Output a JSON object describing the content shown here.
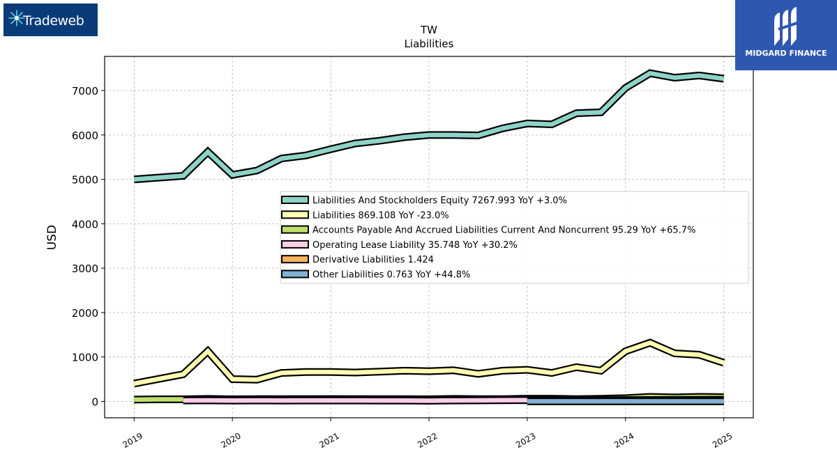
{
  "brand_left": {
    "logo_text": "Tradeweb",
    "icon": "tradeweb-starburst-icon",
    "bg_color": "#0a3a78"
  },
  "brand_right": {
    "logo_text": "MIDGARD FINANCE",
    "icon": "midgard-m-monogram-icon",
    "bg_color": "#2e58b0"
  },
  "chart_data": {
    "type": "line",
    "title": "TW",
    "subtitle": "Liabilities",
    "xlabel": "",
    "ylabel": "USD",
    "xlim": [
      2018.7,
      2025.3
    ],
    "ylim": [
      -370,
      7770
    ],
    "x_ticks": [
      2019,
      2020,
      2021,
      2022,
      2023,
      2024,
      2025
    ],
    "y_ticks": [
      0,
      1000,
      2000,
      3000,
      4000,
      5000,
      6000,
      7000
    ],
    "grid": true,
    "legend_position": "center-right",
    "series": [
      {
        "name": "Liabilities And Stockholders Equity  7267.993 YoY +3.0%",
        "color": "#8dd3c7",
        "x": [
          2019.0,
          2019.5,
          2019.75,
          2020.0,
          2020.25,
          2020.5,
          2020.75,
          2021.0,
          2021.25,
          2021.5,
          2021.75,
          2022.0,
          2022.25,
          2022.5,
          2022.75,
          2023.0,
          2023.25,
          2023.5,
          2023.75,
          2024.0,
          2024.25,
          2024.5,
          2024.75,
          2025.0
        ],
        "values": [
          5000,
          5080,
          5620,
          5100,
          5200,
          5470,
          5540,
          5680,
          5810,
          5870,
          5950,
          6000,
          6000,
          5990,
          6150,
          6260,
          6240,
          6490,
          6510,
          7060,
          7390,
          7290,
          7340,
          7268
        ]
      },
      {
        "name": "Liabilities  869.108 YoY -23.0%",
        "color": "#ffffb3",
        "x": [
          2019.0,
          2019.5,
          2019.75,
          2020.0,
          2020.25,
          2020.5,
          2020.75,
          2021.0,
          2021.25,
          2021.5,
          2021.75,
          2022.0,
          2022.25,
          2022.5,
          2022.75,
          2023.0,
          2023.25,
          2023.5,
          2023.75,
          2024.0,
          2024.25,
          2024.5,
          2024.75,
          2025.0
        ],
        "values": [
          400,
          610,
          1130,
          500,
          490,
          640,
          660,
          660,
          650,
          670,
          690,
          680,
          700,
          620,
          690,
          710,
          640,
          770,
          690,
          1130,
          1320,
          1080,
          1050,
          869
        ]
      },
      {
        "name": "Accounts Payable And Accrued Liabilities Current And Noncurrent  95.29 YoY +65.7%",
        "color": "#bfe06a",
        "x": [
          2019.0,
          2019.25,
          2019.5,
          2019.75,
          2020.0,
          2020.25,
          2020.5,
          2020.75,
          2021.0,
          2021.25,
          2021.5,
          2021.75,
          2022.0,
          2022.25,
          2022.5,
          2022.75,
          2023.0,
          2023.25,
          2023.5,
          2023.75,
          2024.0,
          2024.25,
          2024.5,
          2024.75,
          2025.0
        ],
        "values": [
          40,
          45,
          45,
          55,
          45,
          50,
          48,
          50,
          52,
          50,
          50,
          48,
          45,
          55,
          50,
          50,
          60,
          60,
          50,
          58,
          70,
          100,
          90,
          100,
          95
        ]
      },
      {
        "name": "Operating Lease Liability  35.748 YoY +30.2%",
        "color": "#fccde5",
        "x": [
          2019.5,
          2019.75,
          2020.0,
          2020.25,
          2020.5,
          2020.75,
          2021.0,
          2021.25,
          2021.5,
          2021.75,
          2022.0,
          2022.25,
          2022.5,
          2022.75,
          2023.0,
          2023.25,
          2023.5,
          2023.75,
          2024.0,
          2024.25,
          2024.5,
          2024.75,
          2025.0
        ],
        "values": [
          20,
          22,
          18,
          20,
          18,
          20,
          21,
          20,
          18,
          17,
          15,
          20,
          22,
          25,
          28,
          28,
          26,
          27,
          28,
          30,
          32,
          34,
          36
        ]
      },
      {
        "name": "Derivative Liabilities  1.424",
        "color": "#fdb462",
        "x": [
          2023.0,
          2023.25,
          2023.5,
          2023.75,
          2024.0,
          2024.25,
          2024.5,
          2024.75,
          2025.0
        ],
        "values": [
          1,
          1,
          1,
          1,
          1,
          1,
          1,
          1,
          1.4
        ]
      },
      {
        "name": "Other Liabilities  0.763 YoY +44.8%",
        "color": "#80b1d3",
        "x": [
          2023.0,
          2023.25,
          2023.5,
          2023.75,
          2024.0,
          2024.25,
          2024.5,
          2024.75,
          2025.0
        ],
        "values": [
          0.5,
          0.5,
          0.5,
          0.6,
          0.5,
          0.5,
          0.6,
          0.7,
          0.763
        ]
      }
    ]
  }
}
